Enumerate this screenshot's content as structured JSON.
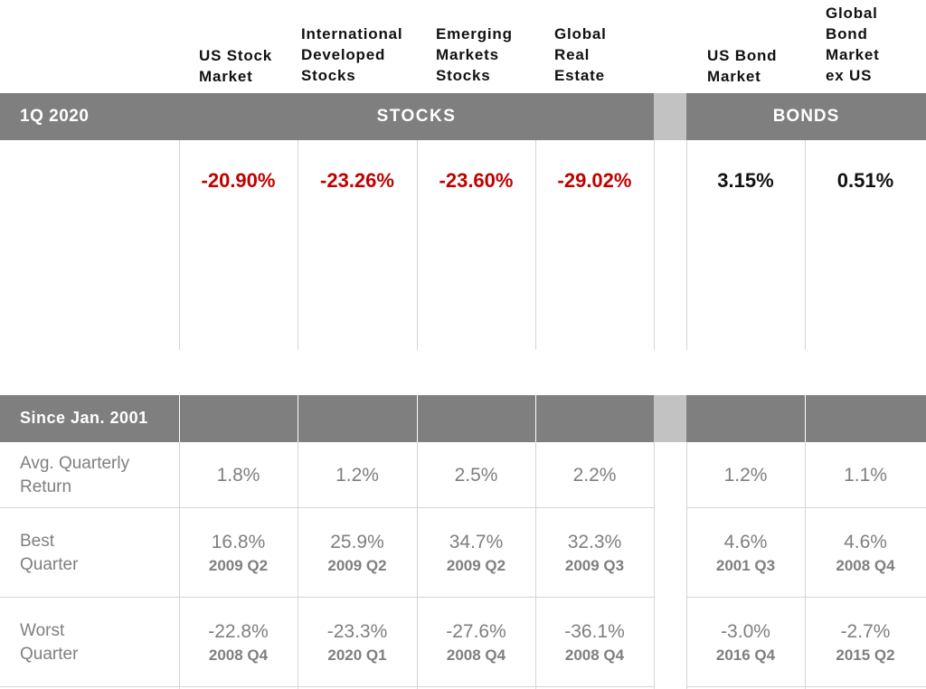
{
  "columns": [
    {
      "header": "US Stock\nMarket"
    },
    {
      "header": "International\nDeveloped\nStocks"
    },
    {
      "header": "Emerging\nMarkets\nStocks"
    },
    {
      "header": "Global\nReal\nEstate"
    },
    {
      "header": "US Bond\nMarket"
    },
    {
      "header": "Global\nBond\nMarket\nex US"
    }
  ],
  "top_table": {
    "period_label": "1Q 2020",
    "stocks_label": "STOCKS",
    "bonds_label": "BONDS",
    "returns": [
      "-20.90%",
      "-23.26%",
      "-23.60%",
      "-29.02%",
      "3.15%",
      "0.51%"
    ],
    "colors": {
      "negative": "#c00000",
      "positive": "#111111"
    }
  },
  "bottom_table": {
    "period_label": "Since Jan. 2001",
    "rows": [
      {
        "label": "Avg. Quarterly\nReturn",
        "values": [
          "1.8%",
          "1.2%",
          "2.5%",
          "2.2%",
          "1.2%",
          "1.1%"
        ]
      },
      {
        "label": "Best\nQuarter",
        "values": [
          "16.8%",
          "25.9%",
          "34.7%",
          "32.3%",
          "4.6%",
          "4.6%"
        ],
        "dates": [
          "2009 Q2",
          "2009 Q2",
          "2009 Q2",
          "2009 Q3",
          "2001 Q3",
          "2008 Q4"
        ]
      },
      {
        "label": "Worst\nQuarter",
        "values": [
          "-22.8%",
          "-23.3%",
          "-27.6%",
          "-36.1%",
          "-3.0%",
          "-2.7%"
        ],
        "dates": [
          "2008 Q4",
          "2020 Q1",
          "2008 Q4",
          "2008 Q4",
          "2016 Q4",
          "2015 Q2"
        ]
      }
    ]
  },
  "palette": {
    "bar": "#7f7f7f",
    "gap_bar": "#c2c2c2",
    "text_grey": "#7f7f7f"
  }
}
